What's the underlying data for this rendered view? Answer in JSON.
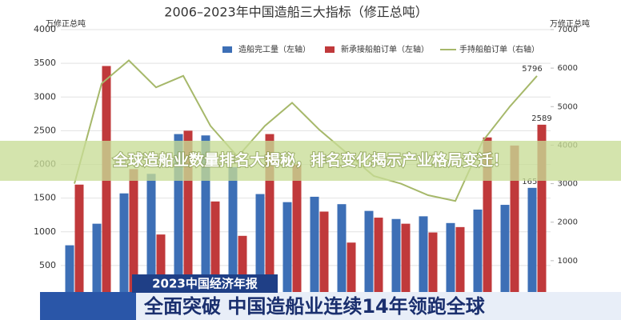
{
  "chart_data": {
    "type": "bar-line",
    "title": "2006–2023年中国造船三大指标（修正总吨）",
    "y_label": "万修正总吨",
    "y2_label": "万修正总吨",
    "categories": [
      null,
      null,
      null,
      null,
      null,
      null,
      null,
      null,
      null,
      null,
      null,
      null,
      null,
      null,
      null,
      null,
      null,
      null
    ],
    "series": [
      {
        "name": "造船完工量（左轴）",
        "color": "#3d6fb6",
        "kind": "bar",
        "values": [
          800,
          1120,
          1570,
          1860,
          2450,
          2430,
          1960,
          1560,
          1440,
          1520,
          1410,
          1310,
          1190,
          1230,
          1130,
          1330,
          1400,
          1652
        ]
      },
      {
        "name": "新承接船舶订单（左轴）",
        "color": "#c0393b",
        "kind": "bar",
        "values": [
          1700,
          3460,
          1930,
          960,
          2500,
          1450,
          940,
          2450,
          2000,
          1300,
          840,
          1210,
          1120,
          990,
          1070,
          2400,
          2280,
          2589
        ]
      },
      {
        "name": "手持船舶订单（右轴）",
        "color": "#a6b86a",
        "kind": "line",
        "axis": "y2",
        "values": [
          3000,
          5600,
          6200,
          5500,
          5800,
          4500,
          3700,
          4500,
          5100,
          4400,
          3800,
          3200,
          3000,
          2700,
          2550,
          4100,
          5000,
          5796
        ]
      }
    ],
    "ylim": [
      0,
      4000
    ],
    "yticks": [
      500,
      1000,
      1500,
      2000,
      2500,
      3000,
      3500,
      4000
    ],
    "y2lim": [
      0,
      7000
    ],
    "y2ticks": [
      1000,
      2000,
      3000,
      4000,
      5000,
      6000,
      7000
    ],
    "grid": true,
    "banner": "全球造船业数量排名大揭秘，排名变化揭示产业格局变迁！",
    "news_tag": "2023中国经济年报",
    "news_headline": "全面突破 中国造船业连续14年领跑全球"
  }
}
